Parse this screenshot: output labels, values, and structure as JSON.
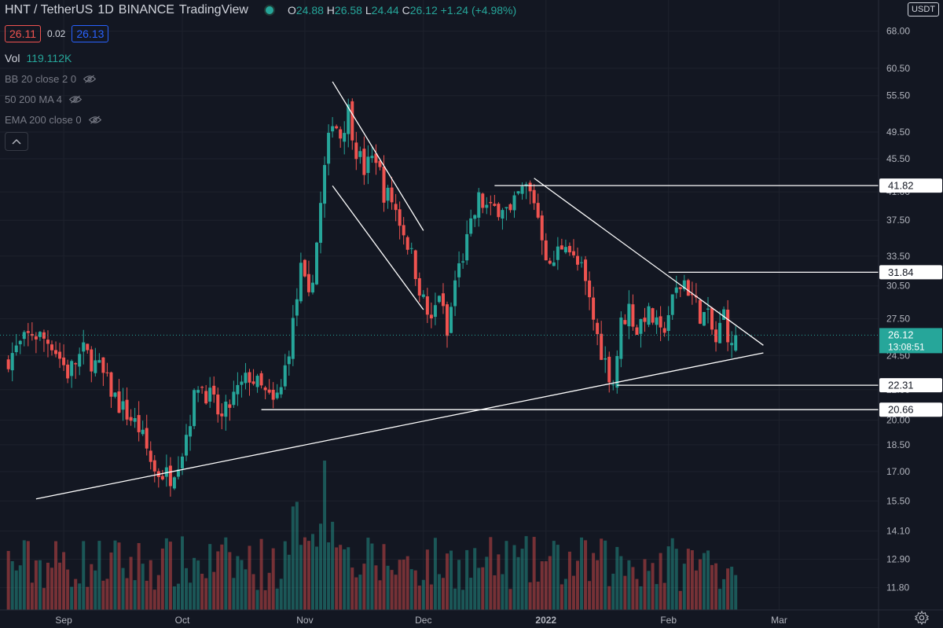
{
  "header": {
    "symbol": "HNT / TetherUS",
    "interval": "1D",
    "exchange": "BINANCE",
    "source": "TradingView",
    "status_color": "#26a69a",
    "open_label": "O",
    "open": "24.88",
    "high_label": "H",
    "high": "26.58",
    "low_label": "L",
    "low": "24.44",
    "close_label": "C",
    "close": "26.12",
    "change": "+1.24 (+4.98%)"
  },
  "prices": {
    "bid": "26.11",
    "spread": "0.02",
    "ask": "26.13"
  },
  "indicators": {
    "volume_label": "Vol",
    "volume_value": "119.112K",
    "bb": "BB 20 close 2 0",
    "ma": "50 200 MA 4",
    "ema": "EMA 200 close 0"
  },
  "currency": "USDT",
  "colors": {
    "up": "#26a69a",
    "down": "#ef5350",
    "bg": "#131722",
    "grid": "#1e222d",
    "line": "#ffffff"
  },
  "chart_data": {
    "type": "candlestick",
    "y_scale": "log",
    "ylim": [
      11.0,
      75.0
    ],
    "y_ticks": [
      "68.00",
      "60.50",
      "55.50",
      "49.50",
      "45.50",
      "41.00",
      "37.50",
      "33.50",
      "30.50",
      "27.50",
      "24.50",
      "22.00",
      "20.00",
      "18.50",
      "17.00",
      "15.50",
      "14.10",
      "12.90",
      "11.80"
    ],
    "x_ticks": [
      {
        "label": "Sep",
        "day": 3
      },
      {
        "label": "Oct",
        "day": 33
      },
      {
        "label": "Nov",
        "day": 64
      },
      {
        "label": "Dec",
        "day": 94
      },
      {
        "label": "2022",
        "day": 125,
        "bold": true
      },
      {
        "label": "Feb",
        "day": 156
      },
      {
        "label": "Mar",
        "day": 184
      }
    ],
    "x_range_days": [
      -12,
      212
    ],
    "waypoints": [
      [
        -12,
        24.0
      ],
      [
        -5,
        26.3
      ],
      [
        0,
        25.5
      ],
      [
        4,
        23.2
      ],
      [
        8,
        24.8
      ],
      [
        12,
        23.5
      ],
      [
        17,
        21.0
      ],
      [
        22,
        19.5
      ],
      [
        26,
        17.0
      ],
      [
        30,
        16.8
      ],
      [
        33,
        18.2
      ],
      [
        37,
        22.5
      ],
      [
        40,
        21.5
      ],
      [
        43,
        20.0
      ],
      [
        46,
        21.5
      ],
      [
        50,
        23.0
      ],
      [
        53,
        22.0
      ],
      [
        56,
        21.0
      ],
      [
        58,
        22.0
      ],
      [
        61,
        27.0
      ],
      [
        63,
        32.0
      ],
      [
        65,
        29.0
      ],
      [
        67,
        35.0
      ],
      [
        69,
        44.0
      ],
      [
        71,
        52.0
      ],
      [
        73,
        49.0
      ],
      [
        75,
        53.0
      ],
      [
        77,
        47.0
      ],
      [
        79,
        44.0
      ],
      [
        82,
        46.0
      ],
      [
        84,
        41.0
      ],
      [
        86,
        40.0
      ],
      [
        88,
        37.5
      ],
      [
        90,
        35.0
      ],
      [
        92,
        32.0
      ],
      [
        94,
        29.0
      ],
      [
        96,
        27.0
      ],
      [
        98,
        30.0
      ],
      [
        100,
        26.0
      ],
      [
        102,
        31.0
      ],
      [
        105,
        35.0
      ],
      [
        108,
        40.0
      ],
      [
        111,
        38.5
      ],
      [
        114,
        39.5
      ],
      [
        116,
        38.0
      ],
      [
        118,
        40.5
      ],
      [
        120,
        41.5
      ],
      [
        122,
        40.0
      ],
      [
        124,
        36.0
      ],
      [
        126,
        32.0
      ],
      [
        128,
        34.0
      ],
      [
        130,
        35.5
      ],
      [
        132,
        33.0
      ],
      [
        134,
        32.0
      ],
      [
        136,
        29.0
      ],
      [
        138,
        26.0
      ],
      [
        140,
        24.0
      ],
      [
        142,
        22.5
      ],
      [
        144,
        27.0
      ],
      [
        146,
        28.5
      ],
      [
        148,
        26.5
      ],
      [
        150,
        28.0
      ],
      [
        152,
        27.5
      ],
      [
        154,
        26.0
      ],
      [
        156,
        28.0
      ],
      [
        158,
        30.0
      ],
      [
        160,
        31.0
      ],
      [
        162,
        29.5
      ],
      [
        164,
        28.0
      ],
      [
        166,
        27.5
      ],
      [
        168,
        25.5
      ],
      [
        170,
        28.0
      ],
      [
        172,
        24.88
      ],
      [
        173,
        26.12
      ]
    ],
    "candle_seed": 7,
    "volume": {
      "label": "Vol",
      "value": "119.112K",
      "spike_day": 69,
      "max_rel": 1.0
    },
    "drawings": [
      {
        "kind": "trendline",
        "from": [
          -4,
          15.6
        ],
        "to": [
          180,
          24.7
        ],
        "desc": "ascending support"
      },
      {
        "kind": "trendline",
        "from": [
          122,
          42.8
        ],
        "to": [
          180,
          25.3
        ],
        "desc": "descending resistance"
      },
      {
        "kind": "trendline",
        "from": [
          71,
          58.0
        ],
        "to": [
          94,
          36.3
        ],
        "desc": "channel upper"
      },
      {
        "kind": "trendline",
        "from": [
          71,
          41.8
        ],
        "to": [
          94,
          28.3
        ],
        "desc": "channel lower"
      },
      {
        "kind": "hline",
        "from_day": 112,
        "price": 41.82,
        "label": "41.82"
      },
      {
        "kind": "hline",
        "from_day": 156,
        "price": 31.84,
        "label": "31.84"
      },
      {
        "kind": "hline",
        "from_day": 143,
        "price": 22.31,
        "label": "22.31"
      },
      {
        "kind": "hline",
        "from_day": 53,
        "price": 20.66,
        "label": "20.66"
      }
    ],
    "last_price": {
      "value": "26.12",
      "countdown": "13:08:51"
    }
  }
}
